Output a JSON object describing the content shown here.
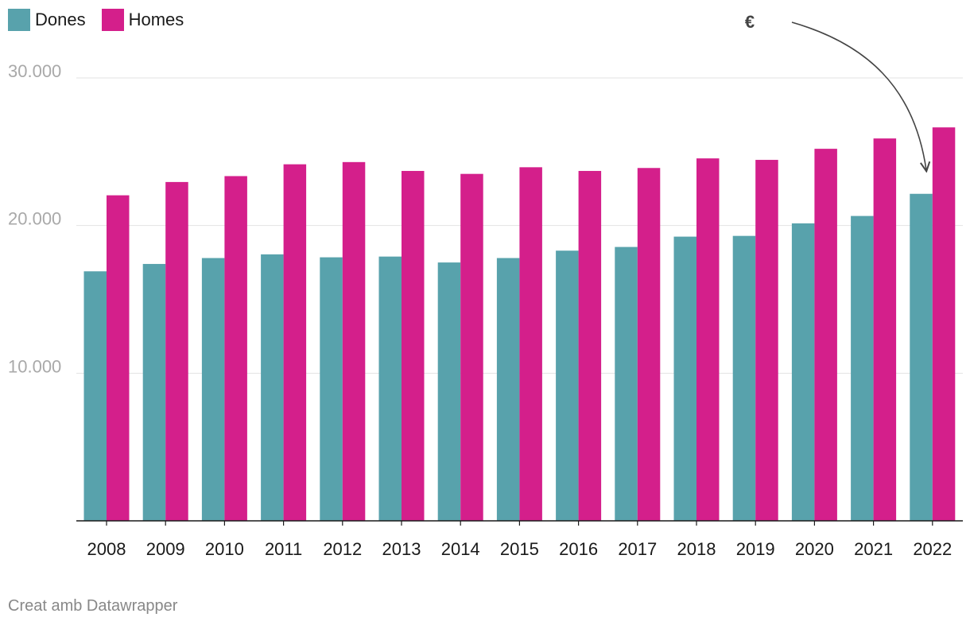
{
  "colors": {
    "dones": "#58a2ac",
    "homes": "#d41f8b",
    "grid": "#e3e3e3",
    "axis": "#1a1a1a",
    "tick_y": "#a9a9a9",
    "tick_x": "#1a1a1a",
    "annotation": "#444444"
  },
  "legend": {
    "items": [
      {
        "label": "Dones",
        "color": "#58a2ac"
      },
      {
        "label": "Homes",
        "color": "#d41f8b"
      }
    ]
  },
  "annotation": {
    "text": "€"
  },
  "footer": {
    "credit": "Creat amb Datawrapper"
  },
  "chart_data": {
    "type": "bar",
    "categories": [
      "2008",
      "2009",
      "2010",
      "2011",
      "2012",
      "2013",
      "2014",
      "2015",
      "2016",
      "2017",
      "2018",
      "2019",
      "2020",
      "2021",
      "2022"
    ],
    "series": [
      {
        "name": "Dones",
        "values": [
          16900,
          17400,
          17800,
          18050,
          17850,
          17900,
          17500,
          17800,
          18300,
          18550,
          19250,
          19300,
          20150,
          20650,
          22150
        ]
      },
      {
        "name": "Homes",
        "values": [
          22050,
          22950,
          23350,
          24150,
          24300,
          23700,
          23500,
          23950,
          23700,
          23900,
          24550,
          24450,
          25200,
          25900,
          26650
        ]
      }
    ],
    "ylim": [
      0,
      30000
    ],
    "yticks": [
      {
        "value": 10000,
        "label": "10.000"
      },
      {
        "value": 20000,
        "label": "20.000"
      },
      {
        "value": 30000,
        "label": "30.000"
      }
    ],
    "grid": true,
    "legend_position": "top-left"
  }
}
